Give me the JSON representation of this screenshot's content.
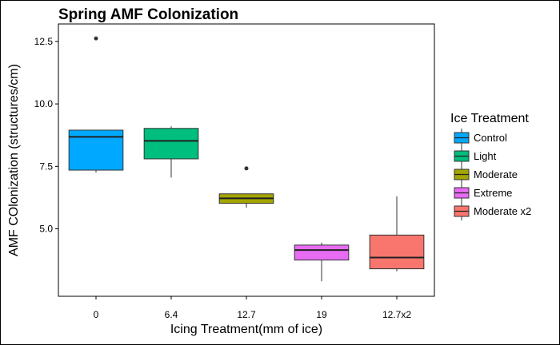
{
  "chart_data": {
    "type": "boxplot",
    "title": "Spring AMF Colonization",
    "xlabel": "Icing Treatment(mm of ice)",
    "ylabel": "AMF COlonization (structures/cm)",
    "ylim": [
      2.3,
      13.2
    ],
    "yticks": [
      5.0,
      7.5,
      10.0,
      12.5
    ],
    "ytick_labels": [
      "5.0",
      "7.5",
      "10.0",
      "12.5"
    ],
    "categories": [
      "0",
      "6.4",
      "12.7",
      "19",
      "12.7x2"
    ],
    "legend": {
      "title": "Ice Treatment",
      "position": "right"
    },
    "series": [
      {
        "name": "Control",
        "color": "#00A9FF",
        "min": 7.25,
        "q1": 7.35,
        "median": 8.68,
        "q3": 8.95,
        "max": 8.95,
        "outliers": [
          12.62
        ]
      },
      {
        "name": "Light",
        "color": "#00BE7D",
        "min": 7.05,
        "q1": 7.8,
        "median": 8.52,
        "q3": 9.02,
        "max": 9.1,
        "outliers": []
      },
      {
        "name": "Moderate",
        "color": "#A3A500",
        "min": 5.85,
        "q1": 6.02,
        "median": 6.22,
        "q3": 6.4,
        "max": 6.4,
        "outliers": [
          7.42
        ]
      },
      {
        "name": "Extreme",
        "color": "#E76BF3",
        "min": 2.9,
        "q1": 3.75,
        "median": 4.15,
        "q3": 4.35,
        "max": 4.45,
        "outliers": []
      },
      {
        "name": "Moderate x2",
        "color": "#F8766D",
        "min": 3.3,
        "q1": 3.4,
        "median": 3.85,
        "q3": 4.75,
        "max": 6.3,
        "outliers": []
      }
    ]
  }
}
